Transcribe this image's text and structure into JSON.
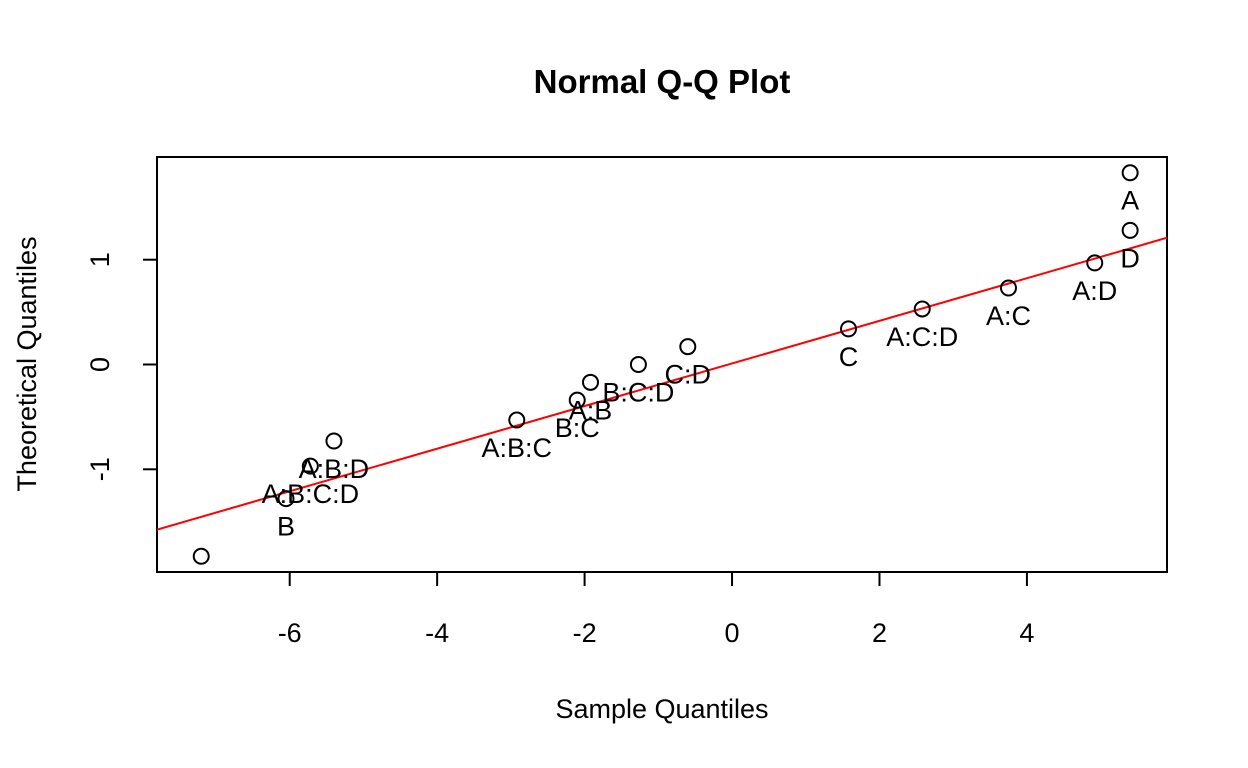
{
  "chart_data": {
    "type": "scatter",
    "title": "Normal Q-Q Plot",
    "xlabel": "Sample Quantiles",
    "ylabel": "Theoretical Quantiles",
    "xlim": [
      -7.8,
      5.9
    ],
    "ylim": [
      -1.98,
      1.98
    ],
    "xticks": [
      -6,
      -4,
      -2,
      0,
      2,
      4
    ],
    "yticks": [
      -1,
      0,
      1
    ],
    "grid": false,
    "points": [
      {
        "x": -7.2,
        "y": -1.83,
        "label": ""
      },
      {
        "x": -6.05,
        "y": -1.28,
        "label": "B"
      },
      {
        "x": -5.72,
        "y": -0.97,
        "label": "A:B:C:D"
      },
      {
        "x": -5.4,
        "y": -0.73,
        "label": "A:B:D"
      },
      {
        "x": -2.92,
        "y": -0.53,
        "label": "A:B:C"
      },
      {
        "x": -2.1,
        "y": -0.34,
        "label": "B:C"
      },
      {
        "x": -1.92,
        "y": -0.17,
        "label": "A:B"
      },
      {
        "x": -1.27,
        "y": 0.0,
        "label": "B:C:D"
      },
      {
        "x": -0.6,
        "y": 0.17,
        "label": "C:D"
      },
      {
        "x": 1.58,
        "y": 0.34,
        "label": "C"
      },
      {
        "x": 2.58,
        "y": 0.53,
        "label": "A:C:D"
      },
      {
        "x": 3.75,
        "y": 0.73,
        "label": "A:C"
      },
      {
        "x": 4.92,
        "y": 0.97,
        "label": "A:D"
      },
      {
        "x": 5.4,
        "y": 1.28,
        "label": "D"
      },
      {
        "x": 5.4,
        "y": 1.83,
        "label": "A"
      }
    ],
    "reference_line": {
      "intercept": 0.01,
      "slope": 0.2033,
      "color": "#ff0000"
    }
  }
}
